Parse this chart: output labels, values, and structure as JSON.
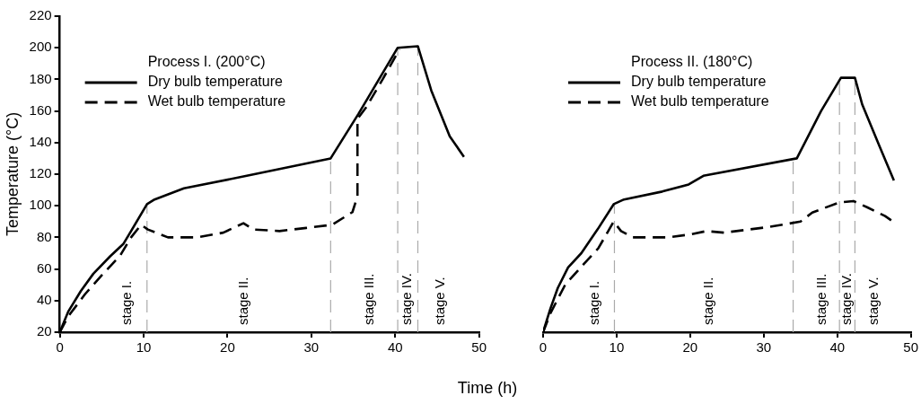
{
  "chart_data": [
    {
      "type": "line",
      "legend_title": "Process I. (200°C)",
      "xlabel": "Time (h)",
      "ylabel": "Temperature (°C)",
      "xlim": [
        0,
        50
      ],
      "xticks": [
        0,
        10,
        20,
        30,
        40,
        50
      ],
      "ylim": [
        20,
        220
      ],
      "yticks": [
        20,
        40,
        60,
        80,
        100,
        120,
        140,
        160,
        180,
        200,
        220
      ],
      "legend": "top left",
      "series": [
        {
          "name": "Dry bulb temperature",
          "color": "#000000",
          "line_style": "solid",
          "x": [
            0,
            1,
            2.5,
            4,
            6,
            7.6,
            8.5,
            10.4,
            11.3,
            14.8,
            22.3,
            32.3,
            35.6,
            40.3,
            42.7,
            44.3,
            46.5,
            48.2
          ],
          "values": [
            20,
            33,
            46,
            57,
            68,
            76,
            84,
            101,
            104,
            111,
            119,
            130,
            158,
            200,
            201,
            173,
            144,
            131
          ]
        },
        {
          "name": "Wet bulb temperature",
          "color": "#000000",
          "line_style": "dashed",
          "x": [
            0,
            1,
            3,
            5,
            7.2,
            8.5,
            9.7,
            10.5,
            12.9,
            16.4,
            19.5,
            21.9,
            23.1,
            26.2,
            29.4,
            32.5,
            34.9,
            35.5,
            35.5,
            36.5,
            38.5,
            40.5
          ],
          "values": [
            20,
            30,
            44,
            56,
            68.5,
            80,
            88,
            85,
            80,
            80,
            83,
            89,
            85,
            84,
            86,
            88,
            96,
            106,
            155,
            162,
            180,
            199
          ]
        }
      ],
      "ref_lines": [
        {
          "axis": "x",
          "value": 10.4,
          "color": "#aaaaaa",
          "line_style": "dashed"
        },
        {
          "axis": "x",
          "value": 32.3,
          "color": "#aaaaaa",
          "line_style": "dashed"
        },
        {
          "axis": "x",
          "value": 40.3,
          "color": "#aaaaaa",
          "line_style": "dashed"
        },
        {
          "axis": "x",
          "value": 42.7,
          "color": "#aaaaaa",
          "line_style": "dashed"
        }
      ],
      "annotations": [
        "stage I.",
        "stage II.",
        "stage III.",
        "stage IV.",
        "stage V."
      ]
    },
    {
      "type": "line",
      "legend_title": "Process II. (180°C)",
      "xlim": [
        0,
        50
      ],
      "xticks": [
        0,
        10,
        20,
        30,
        40,
        50
      ],
      "ylim": [
        20,
        220
      ],
      "tick_labels": "x",
      "legend": "top left",
      "series": [
        {
          "name": "Dry bulb temperature",
          "color": "#000000",
          "line_style": "solid",
          "x": [
            0,
            1,
            2,
            3.4,
            5.2,
            7.4,
            9.6,
            11,
            16.2,
            19.8,
            21.8,
            34.5,
            37.8,
            40.5,
            42.4,
            43.4,
            45.8,
            47.7
          ],
          "values": [
            20,
            35,
            48,
            61,
            70,
            85,
            101,
            104,
            109,
            113.5,
            119,
            130,
            160,
            181,
            181,
            164,
            137,
            116
          ]
        },
        {
          "name": "Wet bulb temperature",
          "color": "#000000",
          "line_style": "dashed",
          "x": [
            0,
            1,
            3,
            5.5,
            7.5,
            9.6,
            10.6,
            12.2,
            17,
            20.2,
            22.2,
            24.6,
            30.6,
            35,
            36.6,
            40.2,
            42.2,
            44.1,
            46.5,
            47.6
          ],
          "values": [
            20,
            32,
            50,
            63,
            73,
            90,
            84,
            80,
            80,
            82,
            84,
            83,
            86.5,
            90,
            95.7,
            102,
            103,
            99,
            93.5,
            90
          ]
        }
      ],
      "ref_lines": [
        {
          "axis": "x",
          "value": 9.7,
          "color": "#aaaaaa",
          "line_style": "dashed"
        },
        {
          "axis": "x",
          "value": 34,
          "color": "#aaaaaa",
          "line_style": "dashed"
        },
        {
          "axis": "x",
          "value": 40.3,
          "color": "#aaaaaa",
          "line_style": "dashed"
        },
        {
          "axis": "x",
          "value": 42.4,
          "color": "#aaaaaa",
          "line_style": "dashed"
        }
      ],
      "annotations": [
        "stage I.",
        "stage II.",
        "stage III.",
        "stage IV.",
        "stage V."
      ]
    }
  ]
}
